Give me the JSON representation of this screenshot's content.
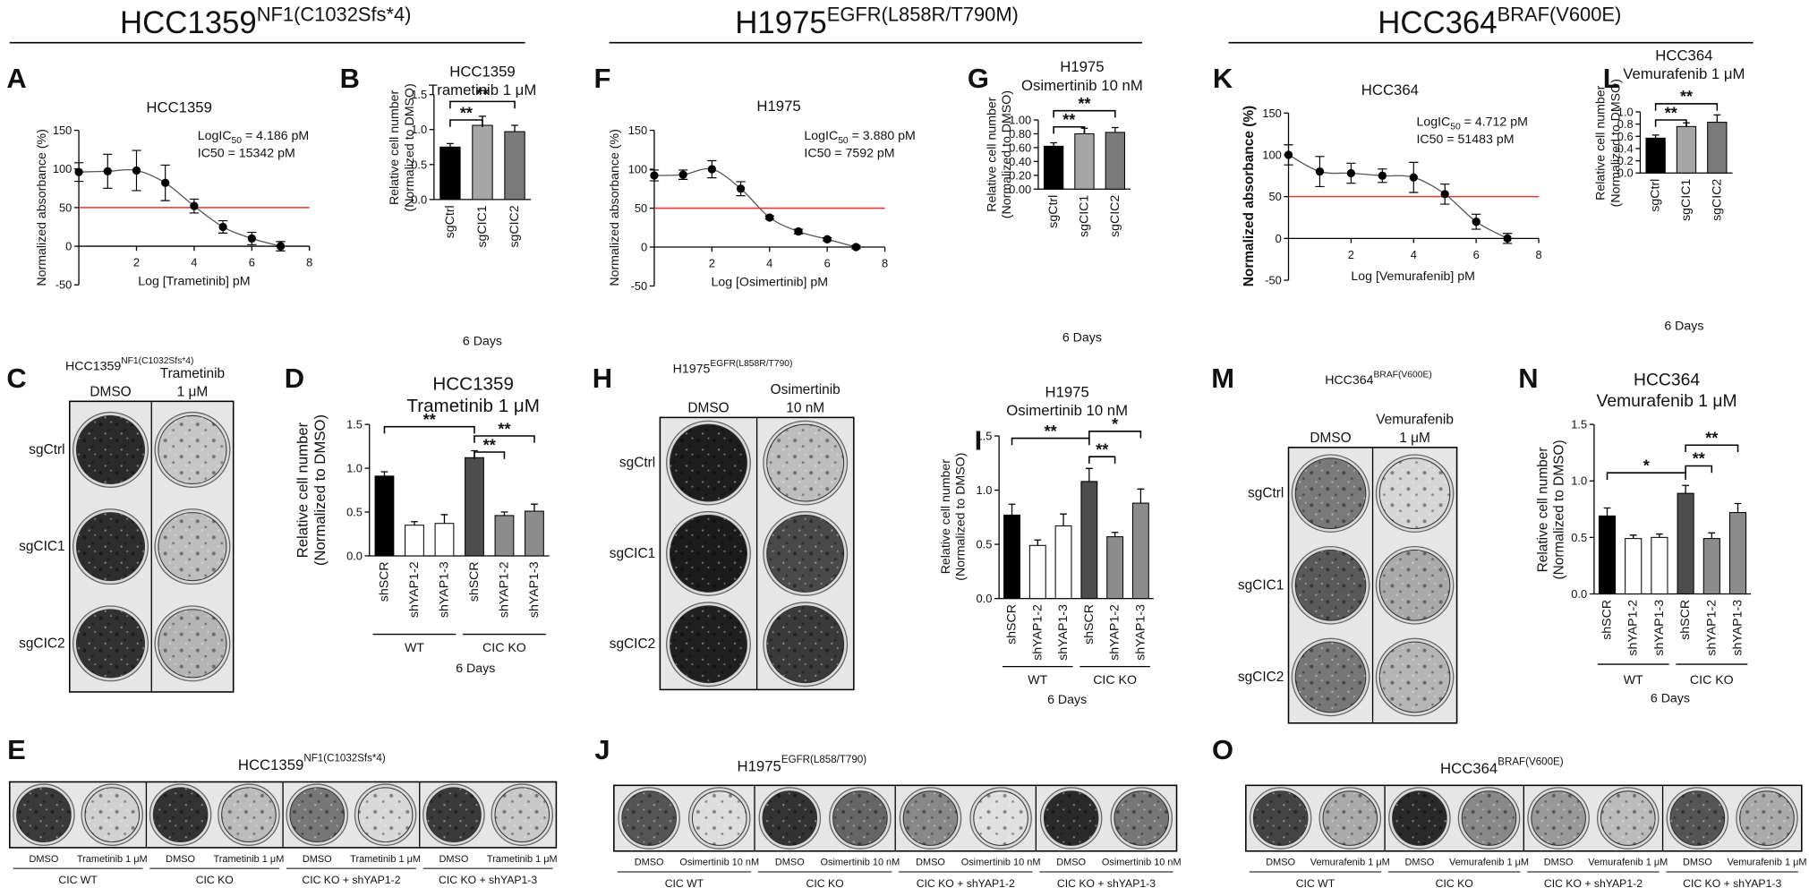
{
  "headers": [
    {
      "name": "HCC1359",
      "mutation": "NF1(C1032Sfs*4)"
    },
    {
      "name": "H1975",
      "mutation": "EGFR(L858R/T790M)"
    },
    {
      "name": "HCC364",
      "mutation": "BRAF(V600E)"
    }
  ],
  "chart_data": [
    {
      "panel": "A",
      "type": "scatter",
      "title": "HCC1359",
      "x_label": "Log [Trametinib] pM",
      "y_label": "Normalized absorbance (%)",
      "annotations": [
        {
          "text": "LogIC",
          "subscript": "50",
          "after": " = 4.186 pM"
        },
        {
          "text": "IC50 = 15342 pM"
        }
      ],
      "x": [
        0,
        1,
        2,
        3,
        4,
        5,
        6,
        7
      ],
      "values": [
        96,
        97,
        98,
        82,
        52,
        25,
        10,
        0
      ],
      "errors": [
        12,
        22,
        26,
        23,
        9,
        8,
        8,
        6
      ],
      "color": "#000000",
      "fit_line": true,
      "xlim": [
        0,
        8
      ],
      "xticks": [
        2,
        4,
        6,
        8
      ],
      "ylim": [
        -50,
        150
      ],
      "yticks": [
        -50,
        0,
        50,
        100,
        150
      ],
      "reference_line": {
        "value": 50,
        "color": "#e53935"
      }
    },
    {
      "panel": "B",
      "type": "bar",
      "title": [
        "HCC1359",
        "Trametinib 1 μM"
      ],
      "y_label": [
        "Relative cell number",
        "(Normalized to DMSO)"
      ],
      "x_label": "6 Days",
      "categories": [
        "sgCtrl",
        "sgCIC1",
        "sgCIC2"
      ],
      "values": [
        0.75,
        1.06,
        0.97
      ],
      "errors": [
        0.05,
        0.13,
        0.09
      ],
      "colors": [
        "#000000",
        "#a6a6a6",
        "#7a7a7a"
      ],
      "ylim": [
        0,
        1.5
      ],
      "yticks": [
        {
          "value": 0,
          "label": "0.0"
        },
        0.5,
        {
          "value": 1,
          "label": "1.0"
        },
        1.5
      ],
      "brackets": [
        {
          "label": "**",
          "from": 0,
          "to": 1
        },
        {
          "label": "**",
          "from": 0,
          "to": 2
        }
      ]
    },
    {
      "panel": "F",
      "type": "scatter",
      "title": "H1975",
      "x_label": "Log [Osimertinib] pM",
      "y_label": "Normalized absorbance (%)",
      "annotations": [
        {
          "text": "LogIC",
          "subscript": "50",
          "after": " = 3.880 pM"
        },
        {
          "text": "IC50 = 7592 pM"
        }
      ],
      "x": [
        0,
        1,
        2,
        3,
        4,
        5,
        6,
        7
      ],
      "values": [
        92,
        93,
        100,
        75,
        38,
        20,
        10,
        0
      ],
      "errors": [
        7,
        6,
        11,
        9,
        2,
        3,
        2,
        2
      ],
      "color": "#000000",
      "fit_line": true,
      "xlim": [
        0,
        8
      ],
      "xticks": [
        2,
        4,
        6,
        8
      ],
      "ylim": [
        -50,
        150
      ],
      "yticks": [
        -50,
        0,
        50,
        100,
        150
      ],
      "reference_line": {
        "value": 50,
        "color": "#e53935"
      }
    },
    {
      "panel": "G",
      "type": "bar",
      "title": [
        "H1975",
        "Osimertinib 10 nM"
      ],
      "y_label": [
        "Relative cell number",
        "(Normalized to DMSO)"
      ],
      "x_label": "6 Days",
      "categories": [
        "sgCtrl",
        "sgCIC1",
        "sgCIC2"
      ],
      "values": [
        0.62,
        0.8,
        0.82
      ],
      "errors": [
        0.05,
        0.08,
        0.07
      ],
      "colors": [
        "#000000",
        "#a6a6a6",
        "#7a7a7a"
      ],
      "ylim": [
        0,
        1
      ],
      "yticks": [
        {
          "value": 0,
          "label": "0.00"
        },
        {
          "value": 0.2,
          "label": "0.20"
        },
        {
          "value": 0.4,
          "label": "0.40"
        },
        {
          "value": 0.6,
          "label": "0.60"
        },
        {
          "value": 0.8,
          "label": "0.80"
        },
        {
          "value": 1,
          "label": "1.00"
        }
      ],
      "brackets": [
        {
          "label": "**",
          "from": 0,
          "to": 1
        },
        {
          "label": "**",
          "from": 0,
          "to": 2
        }
      ]
    },
    {
      "panel": "K",
      "type": "scatter",
      "title": "HCC364",
      "x_label": "Log [Vemurafenib] pM",
      "y_label": "Normalized absorbance (%)",
      "y_label_bold": true,
      "annotations": [
        {
          "text": "LogIC",
          "subscript": "50",
          "after": " = 4.712 pM"
        },
        {
          "text": "IC50 = 51483 pM"
        }
      ],
      "x": [
        0,
        1,
        2,
        3,
        4,
        5,
        6,
        7
      ],
      "values": [
        100,
        80,
        78,
        75,
        73,
        53,
        20,
        0
      ],
      "errors": [
        12,
        18,
        12,
        8,
        18,
        12,
        9,
        6
      ],
      "color": "#000000",
      "fit_line": true,
      "xlim": [
        0,
        8
      ],
      "xticks": [
        2,
        4,
        6,
        8
      ],
      "ylim": [
        -50,
        150
      ],
      "yticks": [
        -50,
        0,
        50,
        100,
        150
      ],
      "reference_line": {
        "value": 50,
        "color": "#e53935"
      }
    },
    {
      "panel": "L",
      "type": "bar",
      "title": [
        "HCC364",
        "Vemurafenib 1 μM"
      ],
      "y_label": [
        "Relative cell number",
        "(Normalized to DMSO)"
      ],
      "x_label": "6 Days",
      "categories": [
        "sgCtrl",
        "sgCIC1",
        "sgCIC2"
      ],
      "values": [
        0.57,
        0.76,
        0.83
      ],
      "errors": [
        0.05,
        0.06,
        0.12
      ],
      "colors": [
        "#000000",
        "#a6a6a6",
        "#7a7a7a"
      ],
      "ylim": [
        0,
        1
      ],
      "yticks": [
        {
          "value": 0,
          "label": "0.0"
        },
        0.2,
        0.4,
        0.6,
        0.8,
        {
          "value": 1,
          "label": "1.0"
        }
      ],
      "brackets": [
        {
          "label": "**",
          "from": 0,
          "to": 1
        },
        {
          "label": "**",
          "from": 0,
          "to": 2
        }
      ]
    },
    {
      "panel": "D",
      "type": "bar",
      "title": [
        "HCC1359",
        "Trametinib 1 μM"
      ],
      "y_label": [
        "Relative cell number",
        "(Normalized to DMSO)"
      ],
      "x_label": "6 Days",
      "categories": [
        "shSCR",
        "shYAP1-2",
        "shYAP1-3",
        "shSCR",
        "shYAP1-2",
        "shYAP1-3"
      ],
      "groups": [
        "WT",
        "CIC KO"
      ],
      "values": [
        0.91,
        0.35,
        0.37,
        1.12,
        0.46,
        0.51
      ],
      "errors": [
        0.05,
        0.04,
        0.1,
        0.08,
        0.04,
        0.08
      ],
      "colors": [
        "#000000",
        "#ffffff",
        "#ffffff",
        "#4d4d4d",
        "#8c8c8c",
        "#8c8c8c"
      ],
      "ylim": [
        0,
        1.5
      ],
      "yticks": [
        {
          "value": 0,
          "label": "0.0"
        },
        0.5,
        {
          "value": 1,
          "label": "1.0"
        },
        1.5
      ],
      "brackets": [
        {
          "label": "**",
          "from": 0,
          "to": 3
        },
        {
          "label": "**",
          "from": 3,
          "to": 4
        },
        {
          "label": "**",
          "from": 3,
          "to": 5
        }
      ]
    },
    {
      "panel": "I",
      "type": "bar",
      "title": [
        "H1975",
        "Osimertinib 10 nM"
      ],
      "y_label": [
        "Relative cell number",
        "(Normalized to DMSO)"
      ],
      "x_label": "6 Days",
      "categories": [
        "shSCR",
        "shYAP1-2",
        "shYAP1-3",
        "shSCR",
        "shYAP1-2",
        "shYAP1-3"
      ],
      "groups": [
        "WT",
        "CIC KO"
      ],
      "values": [
        0.77,
        0.49,
        0.67,
        1.08,
        0.57,
        0.88
      ],
      "errors": [
        0.1,
        0.05,
        0.11,
        0.12,
        0.04,
        0.13
      ],
      "colors": [
        "#000000",
        "#ffffff",
        "#ffffff",
        "#4d4d4d",
        "#8c8c8c",
        "#8c8c8c"
      ],
      "ylim": [
        0,
        1.5
      ],
      "yticks": [
        {
          "value": 0,
          "label": "0.0"
        },
        0.5,
        {
          "value": 1,
          "label": "1.0"
        },
        1.5
      ],
      "brackets": [
        {
          "label": "**",
          "from": 0,
          "to": 3
        },
        {
          "label": "**",
          "from": 3,
          "to": 4
        },
        {
          "label": "*",
          "from": 3,
          "to": 5
        }
      ]
    },
    {
      "panel": "N",
      "type": "bar",
      "title": [
        "HCC364",
        "Vemurafenib 1 μM"
      ],
      "y_label": [
        "Relative cell number",
        "(Normalized to DMSO)"
      ],
      "x_label": "6 Days",
      "categories": [
        "shSCR",
        "shYAP1-2",
        "shYAP1-3",
        "shSCR",
        "shYAP1-2",
        "shYAP1-3"
      ],
      "groups": [
        "WT",
        "CIC KO"
      ],
      "values": [
        0.69,
        0.49,
        0.5,
        0.89,
        0.49,
        0.72
      ],
      "errors": [
        0.07,
        0.03,
        0.03,
        0.07,
        0.05,
        0.08
      ],
      "colors": [
        "#000000",
        "#ffffff",
        "#ffffff",
        "#4d4d4d",
        "#8c8c8c",
        "#8c8c8c"
      ],
      "ylim": [
        0,
        1.5
      ],
      "yticks": [
        {
          "value": 0,
          "label": "0.0"
        },
        0.5,
        {
          "value": 1,
          "label": "1.0"
        },
        1.5
      ],
      "brackets": [
        {
          "label": "*",
          "from": 0,
          "to": 3
        },
        {
          "label": "**",
          "from": 3,
          "to": 4
        },
        {
          "label": "**",
          "from": 3,
          "to": 5
        }
      ]
    }
  ],
  "plates": [
    {
      "panel": "C",
      "title": "HCC1359",
      "title_sup": "NF1(C1032Sfs*4)",
      "columns": [
        [
          "DMSO"
        ],
        [
          "Trametinib",
          "1 μM"
        ]
      ],
      "rows": [
        "sgCtrl",
        "sgCIC1",
        "sgCIC2"
      ]
    },
    {
      "panel": "H",
      "title": "H1975",
      "title_sup": "EGFR(L858R/T790)",
      "columns": [
        [
          "DMSO"
        ],
        [
          "Osimertinib",
          "10 nM"
        ]
      ],
      "rows": [
        "sgCtrl",
        "sgCIC1",
        "sgCIC2"
      ]
    },
    {
      "panel": "M",
      "title": "HCC364",
      "title_sup": "BRAF(V600E)",
      "columns": [
        [
          "DMSO"
        ],
        [
          "Vemurafenib",
          "1 μM"
        ]
      ],
      "rows": [
        "sgCtrl",
        "sgCIC1",
        "sgCIC2"
      ]
    }
  ],
  "strips": [
    {
      "panel": "E",
      "title": "HCC1359",
      "title_sup": "NF1(C1032Sfs*4)",
      "lanes": [
        "DMSO",
        "Trametinib 1 μM",
        "DMSO",
        "Trametinib 1 μM",
        "DMSO",
        "Trametinib 1 μM",
        "DMSO",
        "Trametinib 1 μM"
      ],
      "groups": [
        "CIC WT",
        "CIC KO",
        "CIC KO + shYAP1-2",
        "CIC KO + shYAP1-3"
      ]
    },
    {
      "panel": "J",
      "title": "H1975",
      "title_sup": "EGFR(L858/T790)",
      "lanes": [
        "DMSO",
        "Osimertinib 10 nM",
        "DMSO",
        "Osimertinib 10 nM",
        "DMSO",
        "Osimertinib 10 nM",
        "DMSO",
        "Osimertinib 10 nM"
      ],
      "groups": [
        "CIC WT",
        "CIC KO",
        "CIC KO + shYAP1-2",
        "CIC KO + shYAP1-3"
      ]
    },
    {
      "panel": "O",
      "title": "HCC364",
      "title_sup": "BRAF(V600E)",
      "lanes": [
        "DMSO",
        "Vemurafenib 1 μM",
        "DMSO",
        "Vemurafenib 1 μM",
        "DMSO",
        "Vemurafenib 1 μM",
        "DMSO",
        "Vemurafenib 1 μM"
      ],
      "groups": [
        "CIC WT",
        "CIC KO",
        "CIC KO + shYAP1-2",
        "CIC KO + shYAP1-3"
      ]
    }
  ]
}
